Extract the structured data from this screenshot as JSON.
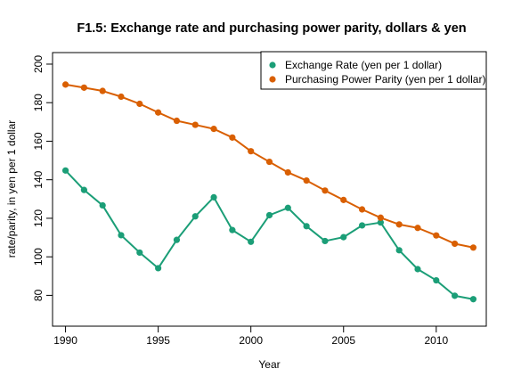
{
  "chart_data": {
    "type": "line",
    "title": "F1.5: Exchange rate and purchasing power parity, dollars & yen",
    "xlabel": "Year",
    "ylabel": "rate/parity, in yen per 1 dollar",
    "xlim": [
      1989.3,
      2012.7
    ],
    "ylim": [
      64,
      206
    ],
    "x_ticks": [
      1990,
      1995,
      2000,
      2005,
      2010
    ],
    "y_ticks": [
      80,
      100,
      120,
      140,
      160,
      180,
      200
    ],
    "legend_position": "top-right",
    "x": [
      1990,
      1991,
      1992,
      1993,
      1994,
      1995,
      1996,
      1997,
      1998,
      1999,
      2000,
      2001,
      2002,
      2003,
      2004,
      2005,
      2006,
      2007,
      2008,
      2009,
      2010,
      2011,
      2012
    ],
    "series": [
      {
        "name": "Exchange Rate (yen per 1 dollar)",
        "color": "#1b9e77",
        "values": [
          144.8,
          134.7,
          126.7,
          111.2,
          102.2,
          94.1,
          108.8,
          121.0,
          130.9,
          113.9,
          107.8,
          121.6,
          125.4,
          115.9,
          108.2,
          110.2,
          116.3,
          117.8,
          103.4,
          93.6,
          87.8,
          79.8,
          78.0
        ]
      },
      {
        "name": "Purchasing Power Parity (yen per 1 dollar)",
        "color": "#d95f02",
        "values": [
          189.4,
          187.8,
          186.1,
          183.1,
          179.4,
          174.9,
          170.6,
          168.5,
          166.4,
          161.9,
          154.8,
          149.3,
          143.8,
          139.6,
          134.4,
          129.5,
          124.6,
          120.3,
          116.8,
          115.0,
          111.1,
          106.8,
          104.8
        ]
      }
    ]
  }
}
